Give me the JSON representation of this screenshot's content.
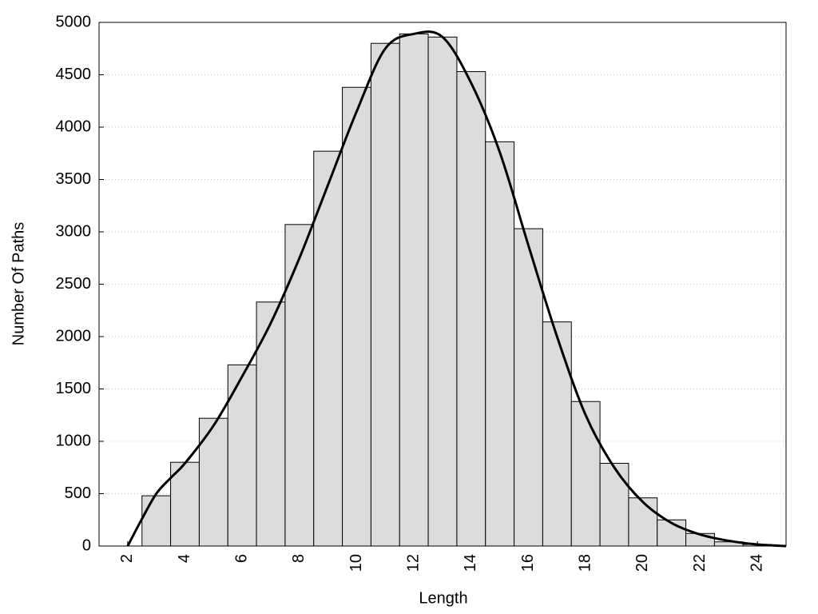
{
  "chart_data": {
    "type": "histogram",
    "x_label": "Length",
    "y_label": "Number Of Paths",
    "bins": [
      2.5,
      3.5,
      4.5,
      5.5,
      6.5,
      7.5,
      8.5,
      9.5,
      10.5,
      11.5,
      12.5,
      13.5,
      14.5,
      15.5,
      16.5,
      17.5,
      18.5,
      19.5,
      20.5,
      21.5,
      22.5,
      23.5,
      24.5
    ],
    "values": [
      480,
      800,
      1220,
      1730,
      2330,
      3070,
      3770,
      4380,
      4800,
      4890,
      4860,
      4530,
      3860,
      3030,
      2140,
      1380,
      790,
      460,
      250,
      120,
      40,
      15
    ],
    "color": "#dcdcdc",
    "curve": {
      "color": "#000000",
      "x": [
        2,
        2.5,
        3,
        3.5,
        4,
        5,
        6,
        7,
        8,
        9,
        10,
        11,
        12,
        13,
        14,
        15,
        16,
        17,
        18,
        19,
        20,
        21,
        22,
        23,
        24,
        25
      ],
      "values": [
        0,
        260,
        500,
        650,
        790,
        1150,
        1620,
        2130,
        2750,
        3450,
        4150,
        4750,
        4890,
        4860,
        4420,
        3760,
        2870,
        2000,
        1250,
        750,
        420,
        220,
        110,
        50,
        15,
        0
      ]
    },
    "xlim": [
      1,
      25
    ],
    "xticks": [
      2,
      4,
      6,
      8,
      10,
      12,
      14,
      16,
      18,
      20,
      22,
      24
    ],
    "ylim": [
      0,
      5000
    ],
    "yticks": [
      0,
      500,
      1000,
      1500,
      2000,
      2500,
      3000,
      3500,
      4000,
      4500,
      5000
    ],
    "grid": true
  }
}
